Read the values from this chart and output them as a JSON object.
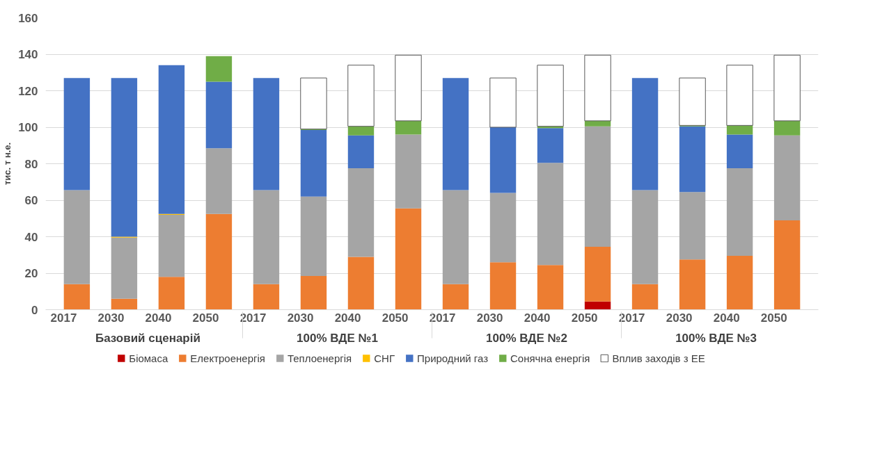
{
  "chart_data": {
    "type": "bar",
    "stacked": true,
    "ylabel": "тис. т н.е.",
    "categories": [
      "2017",
      "2030",
      "2040",
      "2050",
      "2017",
      "2030",
      "2040",
      "2050",
      "2017",
      "2030",
      "2040",
      "2050",
      "2017",
      "2030",
      "2040",
      "2050"
    ],
    "annotations": [
      "Базовий сценарій",
      "100% ВДЕ №1",
      "100% ВДЕ №2",
      "100% ВДЕ №3"
    ],
    "series": [
      {
        "name": "Біомаса",
        "color": "#c00000",
        "values": [
          0,
          0,
          0,
          0,
          0,
          0,
          0,
          0,
          0,
          0,
          0,
          4.5,
          0,
          0,
          0,
          0
        ]
      },
      {
        "name": "Електроенергія",
        "color": "#ed7d31",
        "values": [
          14,
          6,
          18,
          52.5,
          14,
          18.5,
          29,
          55.5,
          14,
          26,
          24.5,
          30,
          14,
          27.5,
          29.5,
          49
        ]
      },
      {
        "name": "Теплоенергія",
        "color": "#a5a5a5",
        "values": [
          51.5,
          33.5,
          34,
          36,
          51.5,
          43.5,
          48.5,
          40.5,
          51.5,
          38,
          56,
          66,
          51.5,
          37,
          48,
          46.5
        ]
      },
      {
        "name": "СНГ",
        "color": "#ffc000",
        "values": [
          0,
          0.5,
          0.5,
          0,
          0,
          0,
          0,
          0,
          0,
          0,
          0,
          0,
          0,
          0,
          0,
          0
        ]
      },
      {
        "name": "Природний газ",
        "color": "#4472c4",
        "values": [
          61.5,
          87,
          81.5,
          36.5,
          61.5,
          36.5,
          18,
          0,
          61.5,
          36,
          19,
          0,
          61.5,
          36,
          18.5,
          0
        ]
      },
      {
        "name": "Сонячна енергія",
        "color": "#70ad47",
        "values": [
          0,
          0,
          0,
          14,
          0,
          0.5,
          5,
          7.5,
          0,
          0,
          1,
          3,
          0,
          0.5,
          5,
          8
        ]
      },
      {
        "name": "Вплив заходів з ЕЕ",
        "color": "#ffffff",
        "values": [
          0,
          0,
          0,
          0,
          0,
          28,
          33.5,
          36,
          0,
          27,
          33.5,
          36,
          0,
          26,
          33,
          36
        ]
      }
    ],
    "ylim": [
      0,
      160
    ],
    "yticks": [
      0,
      20,
      40,
      60,
      80,
      100,
      120,
      140,
      160
    ],
    "grid": "y",
    "legend": "bottom"
  }
}
